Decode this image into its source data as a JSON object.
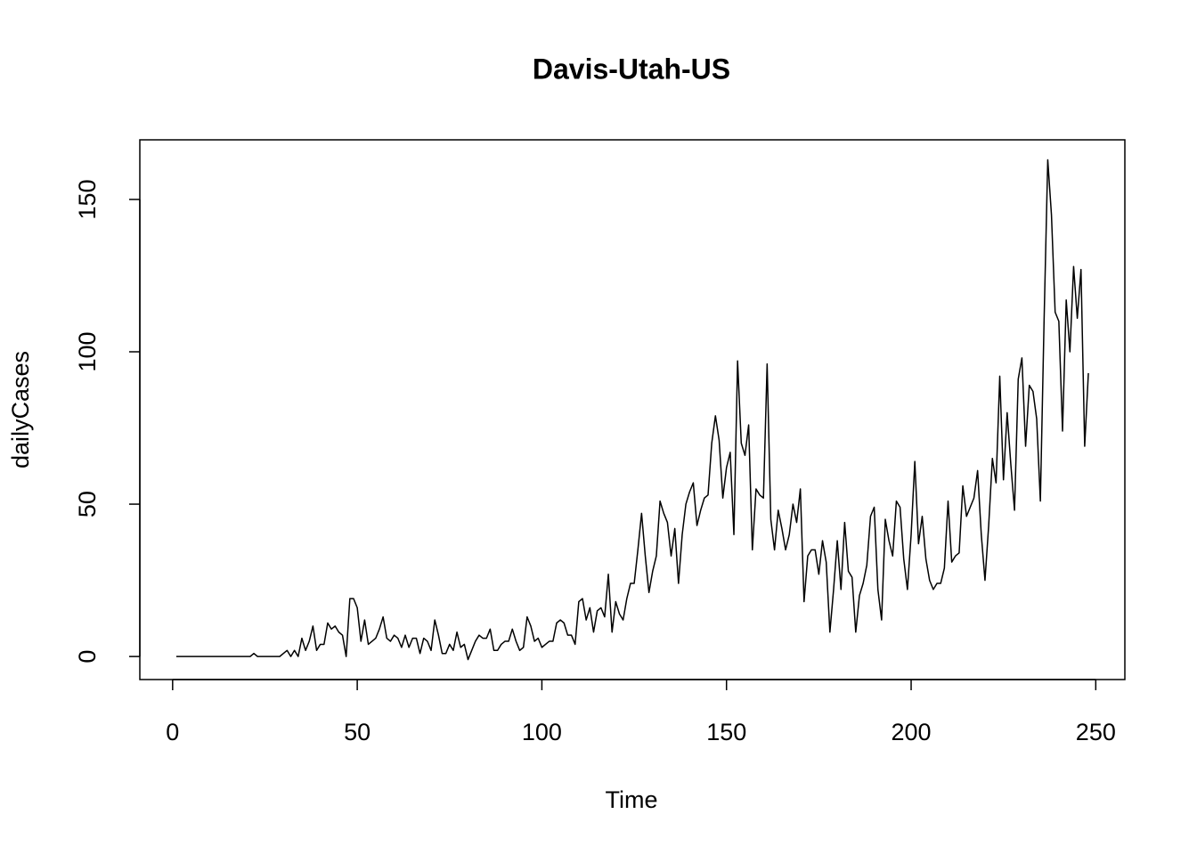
{
  "chart_data": {
    "type": "line",
    "title": "Davis-Utah-US",
    "x_label": "Time",
    "y_label": "dailyCases",
    "color": "#000000",
    "x": [
      1,
      2,
      3,
      4,
      5,
      6,
      7,
      8,
      9,
      10,
      11,
      12,
      13,
      14,
      15,
      16,
      17,
      18,
      19,
      20,
      21,
      22,
      23,
      24,
      25,
      26,
      27,
      28,
      29,
      30,
      31,
      32,
      33,
      34,
      35,
      36,
      37,
      38,
      39,
      40,
      41,
      42,
      43,
      44,
      45,
      46,
      47,
      48,
      49,
      50,
      51,
      52,
      53,
      54,
      55,
      56,
      57,
      58,
      59,
      60,
      61,
      62,
      63,
      64,
      65,
      66,
      67,
      68,
      69,
      70,
      71,
      72,
      73,
      74,
      75,
      76,
      77,
      78,
      79,
      80,
      81,
      82,
      83,
      84,
      85,
      86,
      87,
      88,
      89,
      90,
      91,
      92,
      93,
      94,
      95,
      96,
      97,
      98,
      99,
      100,
      101,
      102,
      103,
      104,
      105,
      106,
      107,
      108,
      109,
      110,
      111,
      112,
      113,
      114,
      115,
      116,
      117,
      118,
      119,
      120,
      121,
      122,
      123,
      124,
      125,
      126,
      127,
      128,
      129,
      130,
      131,
      132,
      133,
      134,
      135,
      136,
      137,
      138,
      139,
      140,
      141,
      142,
      143,
      144,
      145,
      146,
      147,
      148,
      149,
      150,
      151,
      152,
      153,
      154,
      155,
      156,
      157,
      158,
      159,
      160,
      161,
      162,
      163,
      164,
      165,
      166,
      167,
      168,
      169,
      170,
      171,
      172,
      173,
      174,
      175,
      176,
      177,
      178,
      179,
      180,
      181,
      182,
      183,
      184,
      185,
      186,
      187,
      188,
      189,
      190,
      191,
      192,
      193,
      194,
      195,
      196,
      197,
      198,
      199,
      200,
      201,
      202,
      203,
      204,
      205,
      206,
      207,
      208,
      209,
      210,
      211,
      212,
      213,
      214,
      215,
      216,
      217,
      218,
      219,
      220,
      221,
      222,
      223,
      224,
      225,
      226,
      227,
      228,
      229,
      230,
      231,
      232,
      233,
      234,
      235,
      236,
      237,
      238,
      239,
      240,
      241,
      242,
      243,
      244,
      245,
      246,
      247,
      248
    ],
    "values": [
      0,
      0,
      0,
      0,
      0,
      0,
      0,
      0,
      0,
      0,
      0,
      0,
      0,
      0,
      0,
      0,
      0,
      0,
      0,
      0,
      0,
      1,
      0,
      0,
      0,
      0,
      0,
      0,
      0,
      1,
      2,
      0,
      2,
      0,
      6,
      2,
      5,
      10,
      2,
      4,
      4,
      11,
      9,
      10,
      8,
      7,
      0,
      19,
      19,
      16,
      5,
      12,
      4,
      5,
      6,
      9,
      13,
      6,
      5,
      7,
      6,
      3,
      7,
      3,
      6,
      6,
      1,
      6,
      5,
      2,
      12,
      7,
      1,
      1,
      4,
      2,
      8,
      3,
      4,
      -1,
      2,
      5,
      7,
      6,
      6,
      9,
      2,
      2,
      4,
      5,
      5,
      9,
      5,
      2,
      3,
      13,
      10,
      5,
      6,
      3,
      4,
      5,
      5,
      11,
      12,
      11,
      7,
      7,
      4,
      18,
      19,
      12,
      16,
      8,
      15,
      16,
      13,
      27,
      8,
      18,
      14,
      12,
      19,
      24,
      24,
      35,
      47,
      33,
      21,
      28,
      33,
      51,
      47,
      44,
      33,
      42,
      24,
      40,
      50,
      54,
      57,
      43,
      48,
      52,
      53,
      70,
      79,
      71,
      52,
      62,
      67,
      40,
      97,
      70,
      66,
      76,
      35,
      55,
      53,
      52,
      96,
      45,
      35,
      48,
      42,
      35,
      40,
      50,
      44,
      55,
      18,
      33,
      35,
      35,
      27,
      38,
      31,
      8,
      22,
      38,
      22,
      44,
      28,
      26,
      8,
      20,
      24,
      30,
      46,
      49,
      22,
      12,
      45,
      38,
      33,
      51,
      49,
      32,
      22,
      40,
      64,
      37,
      46,
      32,
      25,
      22,
      24,
      24,
      29,
      51,
      31,
      33,
      34,
      56,
      46,
      49,
      52,
      61,
      40,
      25,
      43,
      65,
      57,
      92,
      58,
      80,
      63,
      48,
      91,
      98,
      69,
      89,
      87,
      78,
      51,
      110,
      163,
      145,
      113,
      110,
      74,
      117,
      100,
      128,
      111,
      127,
      69,
      93
    ],
    "xlim": [
      -8.88,
      257.88
    ],
    "ylim": [
      -7.56,
      169.56
    ],
    "xticks": [
      0,
      50,
      100,
      150,
      200,
      250
    ],
    "yticks": [
      0,
      50,
      100,
      150
    ]
  }
}
